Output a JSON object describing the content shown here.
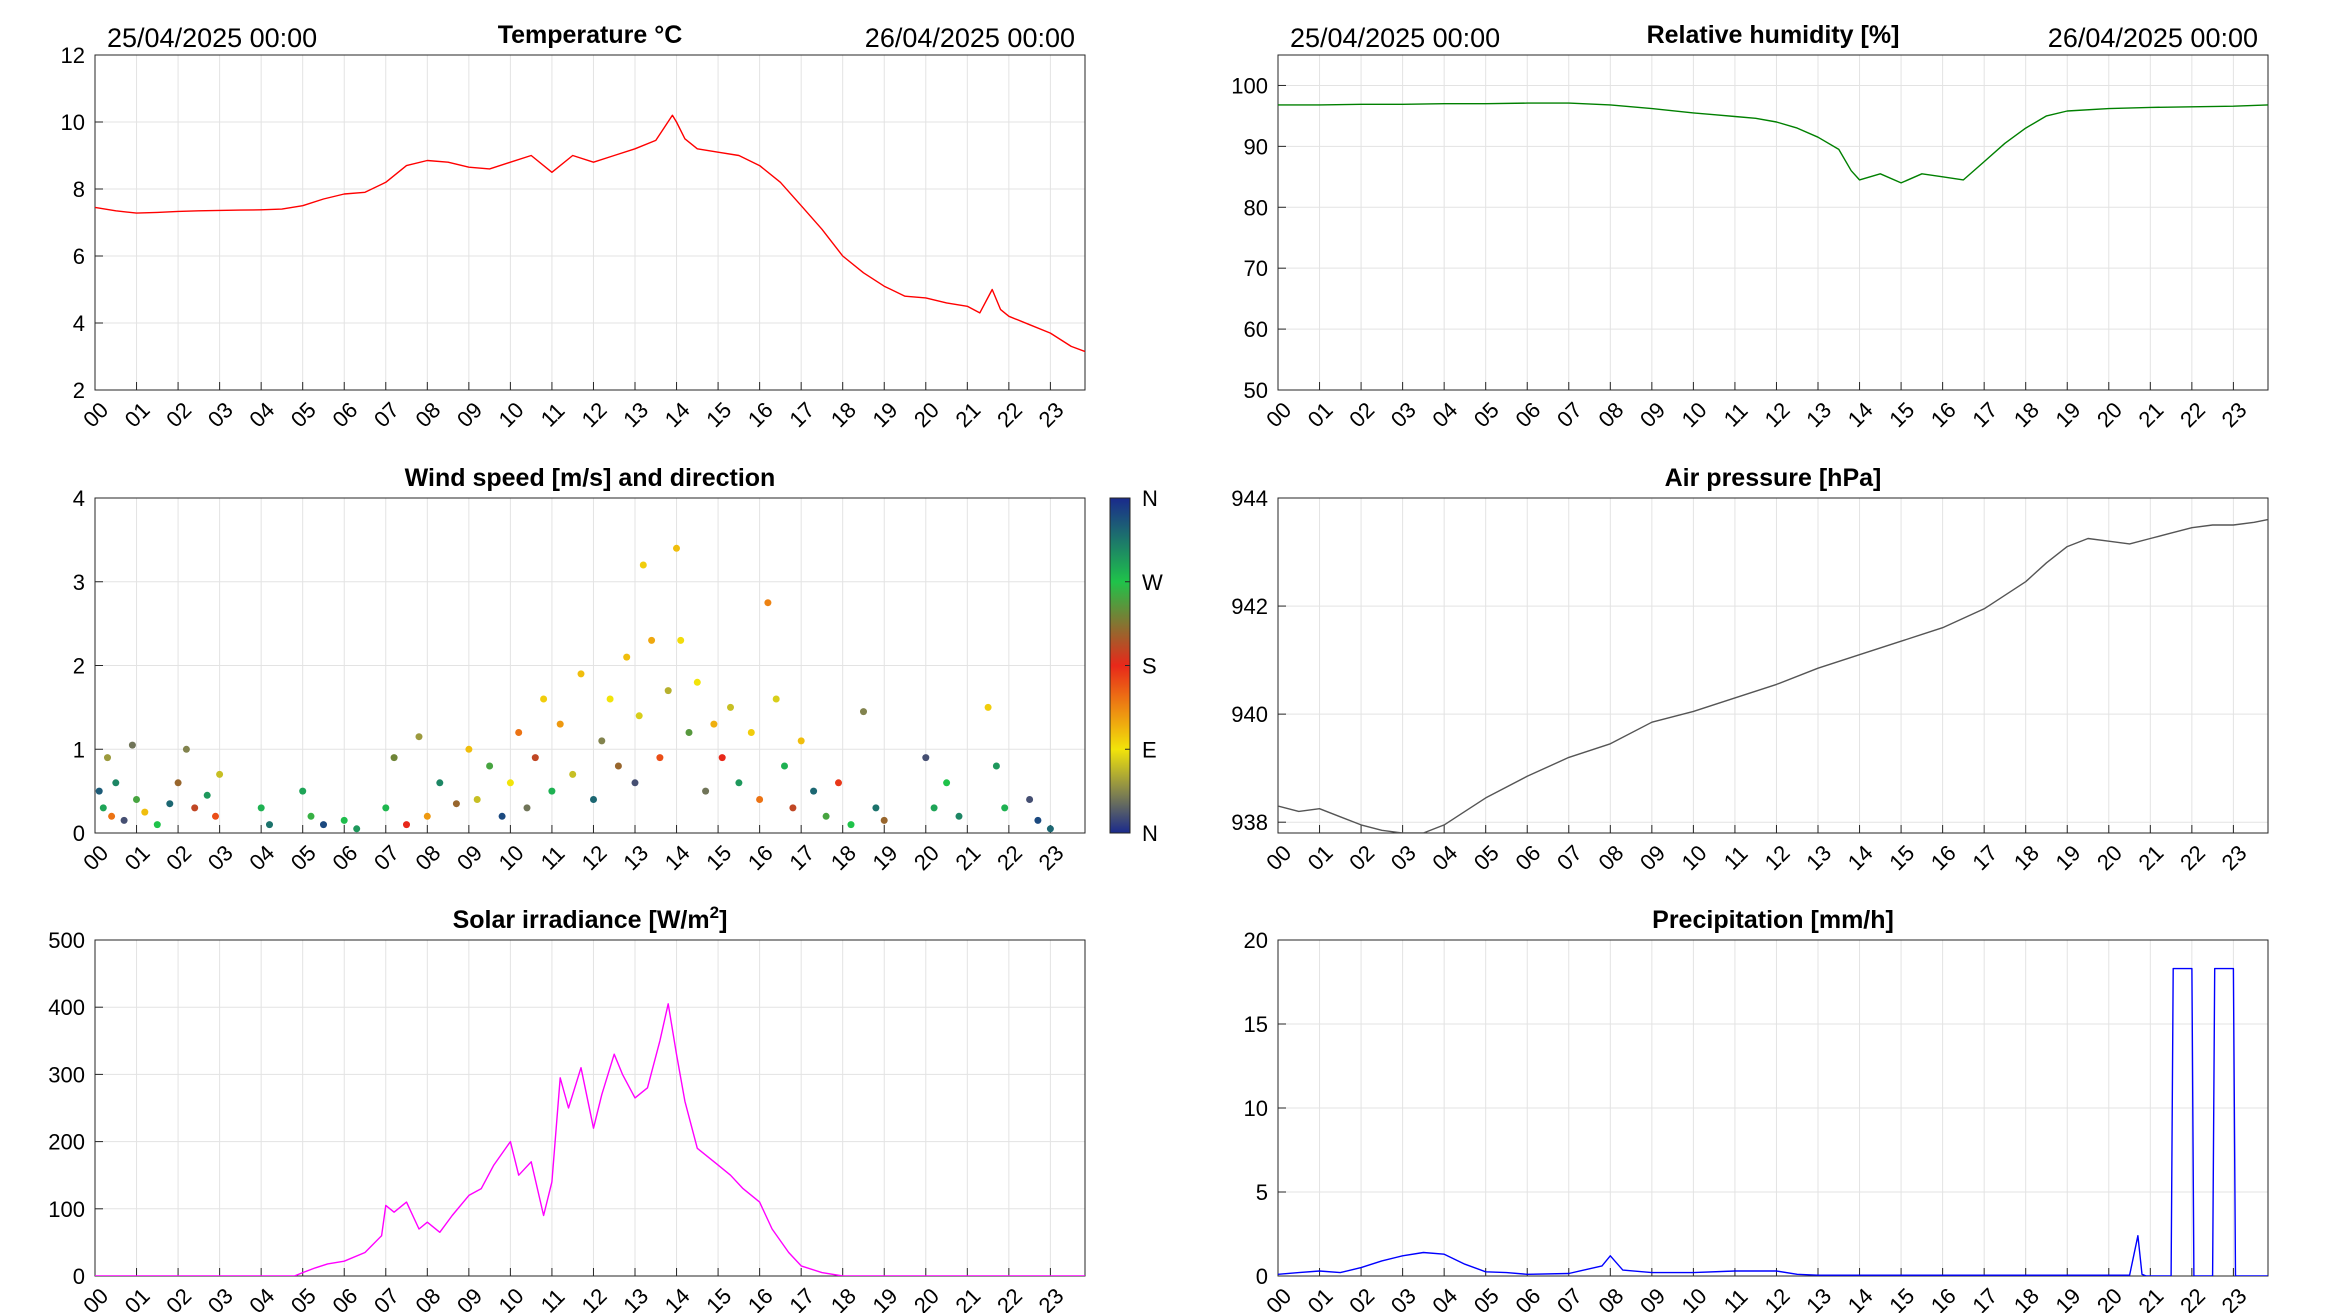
{
  "hours": [
    "00",
    "01",
    "02",
    "03",
    "04",
    "05",
    "06",
    "07",
    "08",
    "09",
    "10",
    "11",
    "12",
    "13",
    "14",
    "15",
    "16",
    "17",
    "18",
    "19",
    "20",
    "21",
    "22",
    "23"
  ],
  "period": {
    "start": "25/04/2025 00:00",
    "end": "26/04/2025 00:00"
  },
  "chart_data": [
    {
      "id": "temperature",
      "type": "line",
      "title": "Temperature °C",
      "color": "#ff0000",
      "ylim": [
        2,
        12
      ],
      "yticks": [
        2,
        4,
        6,
        8,
        10,
        12
      ],
      "xlim": [
        0,
        23.833
      ],
      "grid": true,
      "x": [
        0,
        0.5,
        1,
        1.5,
        2,
        2.5,
        3,
        3.5,
        4,
        4.5,
        5,
        5.5,
        6,
        6.5,
        7,
        7.5,
        8,
        8.5,
        9,
        9.5,
        10,
        10.5,
        11,
        11.5,
        12,
        12.5,
        13,
        13.5,
        13.9,
        14,
        14.2,
        14.5,
        15,
        15.5,
        16,
        16.5,
        17,
        17.5,
        18,
        18.5,
        19,
        19.5,
        20,
        20.5,
        21,
        21.3,
        21.6,
        21.8,
        22,
        22.5,
        23,
        23.5,
        23.83
      ],
      "y": [
        7.45,
        7.35,
        7.28,
        7.3,
        7.33,
        7.35,
        7.36,
        7.37,
        7.38,
        7.4,
        7.5,
        7.7,
        7.85,
        7.9,
        8.2,
        8.7,
        8.85,
        8.8,
        8.65,
        8.6,
        8.8,
        9.0,
        8.5,
        9.0,
        8.8,
        9.0,
        9.2,
        9.45,
        10.2,
        10.0,
        9.5,
        9.2,
        9.1,
        9.0,
        8.7,
        8.2,
        7.5,
        6.8,
        6.0,
        5.5,
        5.1,
        4.8,
        4.75,
        4.6,
        4.5,
        4.3,
        5.0,
        4.4,
        4.2,
        3.95,
        3.7,
        3.3,
        3.15
      ]
    },
    {
      "id": "humidity",
      "type": "line",
      "title": "Relative humidity [%]",
      "color": "#008000",
      "ylim": [
        50,
        105
      ],
      "yticks": [
        50,
        60,
        70,
        80,
        90,
        100
      ],
      "xlim": [
        0,
        23.833
      ],
      "grid": true,
      "x": [
        0,
        1,
        2,
        3,
        4,
        5,
        6,
        7,
        8,
        9,
        10,
        10.5,
        11,
        11.5,
        12,
        12.5,
        13,
        13.5,
        13.8,
        14,
        14.5,
        15,
        15.5,
        16,
        16.5,
        17,
        17.5,
        18,
        18.5,
        19,
        20,
        21,
        22,
        23,
        23.83
      ],
      "y": [
        96.8,
        96.8,
        96.9,
        96.9,
        97.0,
        97.0,
        97.1,
        97.1,
        96.8,
        96.2,
        95.5,
        95.2,
        94.9,
        94.6,
        94.0,
        93.0,
        91.5,
        89.5,
        86.0,
        84.5,
        85.5,
        84.0,
        85.5,
        85.0,
        84.5,
        87.5,
        90.5,
        93.0,
        95.0,
        95.8,
        96.2,
        96.4,
        96.5,
        96.6,
        96.8
      ]
    },
    {
      "id": "wind",
      "type": "scatter",
      "title": "Wind speed [m/s] and direction",
      "ylim": [
        0,
        4
      ],
      "yticks": [
        0,
        1,
        2,
        3,
        4
      ],
      "xlim": [
        0,
        23.833
      ],
      "grid": true,
      "colorbar": {
        "labels": [
          "N",
          "E",
          "S",
          "W",
          "N"
        ],
        "colors": [
          "#1a2a8c",
          "#f2e40a",
          "#e8281a",
          "#1fc34a",
          "#1a2a8c"
        ]
      },
      "points": [
        [
          0.1,
          0.5,
          0.92
        ],
        [
          0.2,
          0.3,
          0.8
        ],
        [
          0.3,
          0.9,
          0.15
        ],
        [
          0.4,
          0.2,
          0.4
        ],
        [
          0.5,
          0.6,
          0.85
        ],
        [
          0.7,
          0.15,
          0.05
        ],
        [
          0.9,
          1.05,
          0.1
        ],
        [
          1.0,
          0.4,
          0.7
        ],
        [
          1.2,
          0.25,
          0.3
        ],
        [
          1.5,
          0.1,
          0.75
        ],
        [
          1.8,
          0.35,
          0.9
        ],
        [
          2.0,
          0.6,
          0.6
        ],
        [
          2.2,
          1.0,
          0.12
        ],
        [
          2.4,
          0.3,
          0.55
        ],
        [
          2.7,
          0.45,
          0.82
        ],
        [
          2.9,
          0.2,
          0.45
        ],
        [
          3.0,
          0.7,
          0.2
        ],
        [
          4.0,
          0.3,
          0.78
        ],
        [
          4.2,
          0.1,
          0.88
        ],
        [
          5.0,
          0.5,
          0.8
        ],
        [
          5.2,
          0.2,
          0.72
        ],
        [
          5.5,
          0.1,
          0.95
        ],
        [
          6.0,
          0.15,
          0.76
        ],
        [
          6.3,
          0.05,
          0.82
        ],
        [
          7.0,
          0.3,
          0.77
        ],
        [
          7.2,
          0.9,
          0.65
        ],
        [
          7.5,
          0.1,
          0.5
        ],
        [
          7.8,
          1.15,
          0.15
        ],
        [
          8.0,
          0.2,
          0.35
        ],
        [
          8.3,
          0.6,
          0.85
        ],
        [
          8.7,
          0.35,
          0.6
        ],
        [
          9.0,
          1.0,
          0.3
        ],
        [
          9.2,
          0.4,
          0.2
        ],
        [
          9.5,
          0.8,
          0.7
        ],
        [
          9.8,
          0.2,
          0.95
        ],
        [
          10.0,
          0.6,
          0.25
        ],
        [
          10.2,
          1.2,
          0.4
        ],
        [
          10.4,
          0.3,
          0.1
        ],
        [
          10.6,
          0.9,
          0.55
        ],
        [
          10.8,
          1.6,
          0.28
        ],
        [
          11.0,
          0.5,
          0.78
        ],
        [
          11.2,
          1.3,
          0.35
        ],
        [
          11.5,
          0.7,
          0.2
        ],
        [
          11.7,
          1.9,
          0.3
        ],
        [
          12.0,
          0.4,
          0.9
        ],
        [
          12.2,
          1.1,
          0.12
        ],
        [
          12.4,
          1.6,
          0.25
        ],
        [
          12.6,
          0.8,
          0.6
        ],
        [
          12.8,
          2.1,
          0.3
        ],
        [
          13.0,
          0.6,
          0.05
        ],
        [
          13.1,
          1.4,
          0.22
        ],
        [
          13.2,
          3.2,
          0.28
        ],
        [
          13.4,
          2.3,
          0.33
        ],
        [
          13.6,
          0.9,
          0.45
        ],
        [
          13.8,
          1.7,
          0.18
        ],
        [
          14.0,
          3.4,
          0.3
        ],
        [
          14.1,
          2.3,
          0.26
        ],
        [
          14.3,
          1.2,
          0.68
        ],
        [
          14.5,
          1.8,
          0.25
        ],
        [
          14.7,
          0.5,
          0.1
        ],
        [
          14.9,
          1.3,
          0.32
        ],
        [
          15.1,
          0.9,
          0.5
        ],
        [
          15.3,
          1.5,
          0.2
        ],
        [
          15.5,
          0.6,
          0.82
        ],
        [
          15.8,
          1.2,
          0.28
        ],
        [
          16.0,
          0.4,
          0.4
        ],
        [
          16.2,
          2.75,
          0.38
        ],
        [
          16.4,
          1.6,
          0.22
        ],
        [
          16.6,
          0.8,
          0.78
        ],
        [
          16.8,
          0.3,
          0.55
        ],
        [
          17.0,
          1.1,
          0.3
        ],
        [
          17.3,
          0.5,
          0.9
        ],
        [
          17.6,
          0.2,
          0.7
        ],
        [
          17.9,
          0.6,
          0.48
        ],
        [
          18.2,
          0.1,
          0.75
        ],
        [
          18.5,
          1.45,
          0.12
        ],
        [
          18.8,
          0.3,
          0.88
        ],
        [
          19.0,
          0.15,
          0.6
        ],
        [
          20.0,
          0.9,
          0.05
        ],
        [
          20.2,
          0.3,
          0.8
        ],
        [
          20.5,
          0.6,
          0.75
        ],
        [
          20.8,
          0.2,
          0.85
        ],
        [
          21.5,
          1.5,
          0.28
        ],
        [
          21.7,
          0.8,
          0.82
        ],
        [
          21.9,
          0.3,
          0.78
        ],
        [
          22.5,
          0.4,
          0.05
        ],
        [
          22.7,
          0.15,
          0.95
        ],
        [
          23.0,
          0.05,
          0.9
        ]
      ]
    },
    {
      "id": "pressure",
      "type": "line",
      "title": "Air pressure [hPa]",
      "color": "#555555",
      "ylim": [
        937.8,
        944
      ],
      "yticks": [
        938,
        940,
        942,
        944
      ],
      "xlim": [
        0,
        23.833
      ],
      "grid": true,
      "x": [
        0,
        0.5,
        1,
        1.5,
        2,
        2.5,
        3,
        3.5,
        4,
        4.5,
        5,
        6,
        7,
        8,
        9,
        10,
        11,
        12,
        13,
        14,
        15,
        16,
        17,
        18,
        18.5,
        19,
        19.5,
        20,
        20.5,
        21,
        21.5,
        22,
        22.5,
        23,
        23.5,
        23.83
      ],
      "y": [
        938.3,
        938.2,
        938.25,
        938.1,
        937.95,
        937.85,
        937.8,
        937.8,
        937.95,
        938.2,
        938.45,
        938.85,
        939.2,
        939.45,
        939.85,
        940.05,
        940.3,
        940.55,
        940.85,
        941.1,
        941.35,
        941.6,
        941.95,
        942.45,
        942.8,
        943.1,
        943.25,
        943.2,
        943.15,
        943.25,
        943.35,
        943.45,
        943.5,
        943.5,
        943.55,
        943.6
      ]
    },
    {
      "id": "solar",
      "type": "line",
      "title": "Solar irradiance [W/m²]",
      "title_main": "Solar irradiance [W/m",
      "title_sup": "2",
      "title_end": "]",
      "color": "#ff00ff",
      "ylim": [
        0,
        500
      ],
      "yticks": [
        0,
        100,
        200,
        300,
        400,
        500
      ],
      "xlim": [
        0,
        23.833
      ],
      "grid": true,
      "x": [
        0,
        4.8,
        5,
        5.3,
        5.6,
        6,
        6.5,
        6.9,
        7,
        7.2,
        7.5,
        7.8,
        8,
        8.3,
        8.6,
        9,
        9.3,
        9.6,
        10,
        10.2,
        10.5,
        10.8,
        11,
        11.2,
        11.4,
        11.7,
        12,
        12.2,
        12.5,
        12.7,
        13,
        13.3,
        13.6,
        13.8,
        14,
        14.2,
        14.5,
        15,
        15.3,
        15.6,
        16,
        16.3,
        16.7,
        17,
        17.5,
        18,
        23.83
      ],
      "y": [
        0,
        0,
        5,
        12,
        18,
        22,
        35,
        60,
        105,
        95,
        110,
        70,
        80,
        65,
        90,
        120,
        130,
        165,
        200,
        150,
        170,
        90,
        140,
        295,
        250,
        310,
        220,
        270,
        330,
        300,
        265,
        280,
        350,
        405,
        330,
        260,
        190,
        165,
        150,
        130,
        110,
        70,
        35,
        15,
        5,
        0,
        0
      ]
    },
    {
      "id": "precipitation",
      "type": "line",
      "title": "Precipitation [mm/h]",
      "color": "#0000ff",
      "ylim": [
        0,
        20
      ],
      "yticks": [
        0,
        5,
        10,
        15,
        20
      ],
      "xlim": [
        0,
        23.833
      ],
      "grid": true,
      "x": [
        0,
        0.5,
        1,
        1.5,
        2,
        2.5,
        3,
        3.5,
        4,
        4.5,
        5,
        5.5,
        6,
        7,
        7.8,
        8,
        8.3,
        9,
        10,
        11,
        12,
        12.5,
        13,
        20.5,
        20.7,
        20.8,
        20.9,
        21.0,
        21.5,
        21.55,
        21.6,
        22.0,
        22.05,
        22.5,
        22.55,
        22.6,
        23.0,
        23.05,
        23.8,
        23.83
      ],
      "y": [
        0.1,
        0.2,
        0.3,
        0.2,
        0.5,
        0.9,
        1.2,
        1.4,
        1.3,
        0.7,
        0.25,
        0.2,
        0.1,
        0.15,
        0.6,
        1.2,
        0.35,
        0.2,
        0.2,
        0.3,
        0.3,
        0.1,
        0.05,
        0.05,
        2.4,
        0.1,
        0,
        0,
        0,
        18.3,
        18.3,
        18.3,
        0,
        0,
        18.3,
        18.3,
        18.3,
        0,
        0,
        0
      ]
    }
  ]
}
